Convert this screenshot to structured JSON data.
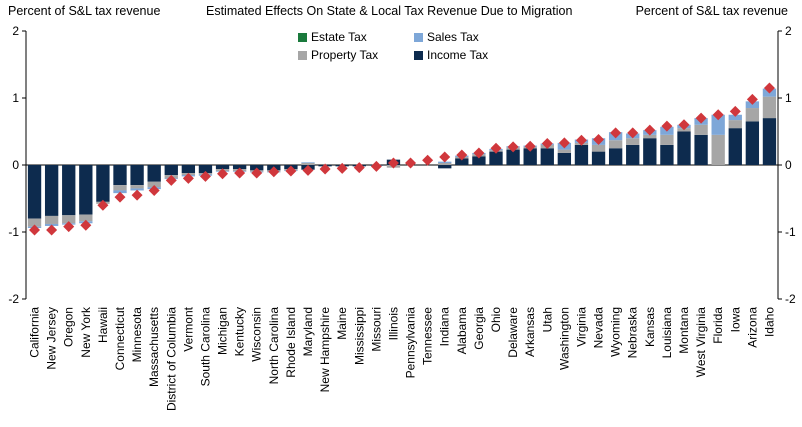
{
  "chart_data": {
    "type": "bar",
    "title": "Estimated Effects On State & Local Tax Revenue  Due to Migration",
    "ylabel_left": "Percent of S&L tax revenue",
    "ylabel_right": "Percent of S&L tax revenue",
    "ylim": [
      -2,
      2
    ],
    "yticks": [
      -2,
      -1,
      0,
      1,
      2
    ],
    "tick_labels": [
      "-2",
      "-1",
      "0",
      "1",
      "2"
    ],
    "stacked": true,
    "categories": [
      "California",
      "New Jersey",
      "Oregon",
      "New York",
      "Hawaii",
      "Connecticut",
      "Minnesota",
      "Massachusetts",
      "District of Columbia",
      "Vermont",
      "South Carolina",
      "Michigan",
      "Kentucky",
      "Wisconsin",
      "North Carolina",
      "Rhode Island",
      "Maryland",
      "New Hampshire",
      "Maine",
      "Mississippi",
      "Missouri",
      "Illinois",
      "Pennsylvania",
      "Tennessee",
      "Indiana",
      "Alabama",
      "Georgia",
      "Ohio",
      "Delaware",
      "Arkansas",
      "Utah",
      "Washington",
      "Virginia",
      "Nevada",
      "Wyoming",
      "Nebraska",
      "Kansas",
      "Louisiana",
      "Montana",
      "West Virginia",
      "Florida",
      "Iowa",
      "Arizona",
      "Idaho"
    ],
    "series": [
      {
        "name": "Income Tax",
        "color": "#0d2b4e",
        "values": [
          -0.8,
          -0.76,
          -0.75,
          -0.74,
          -0.55,
          -0.3,
          -0.3,
          -0.25,
          -0.15,
          -0.12,
          -0.12,
          -0.06,
          -0.06,
          -0.08,
          -0.08,
          -0.06,
          -0.07,
          -0.02,
          -0.02,
          -0.02,
          -0.01,
          0.08,
          0.0,
          0.0,
          -0.05,
          0.1,
          0.13,
          0.2,
          0.23,
          0.25,
          0.25,
          0.18,
          0.3,
          0.2,
          0.25,
          0.3,
          0.4,
          0.3,
          0.5,
          0.45,
          0.0,
          0.55,
          0.65,
          0.7
        ]
      },
      {
        "name": "Property Tax",
        "color": "#a6a6a6",
        "values": [
          -0.12,
          -0.12,
          -0.12,
          -0.1,
          -0.03,
          -0.08,
          -0.05,
          -0.08,
          -0.05,
          -0.03,
          -0.02,
          -0.03,
          -0.03,
          -0.02,
          -0.02,
          -0.02,
          0.03,
          0.0,
          0.0,
          0.0,
          0.0,
          -0.04,
          0.0,
          0.0,
          0.03,
          0.02,
          0.03,
          0.02,
          0.03,
          0.02,
          0.05,
          0.05,
          0.03,
          0.1,
          0.12,
          0.1,
          0.05,
          0.15,
          0.05,
          0.15,
          0.45,
          0.12,
          0.2,
          0.32
        ]
      },
      {
        "name": "Sales Tax",
        "color": "#7ea7d8",
        "values": [
          -0.02,
          -0.03,
          -0.02,
          -0.03,
          0.0,
          -0.04,
          -0.03,
          -0.03,
          -0.01,
          -0.02,
          -0.02,
          -0.01,
          -0.01,
          -0.01,
          -0.01,
          -0.01,
          0.01,
          0.0,
          0.0,
          0.0,
          0.0,
          0.0,
          0.0,
          0.0,
          0.02,
          0.02,
          0.02,
          0.02,
          0.02,
          0.02,
          0.02,
          0.1,
          0.05,
          0.1,
          0.12,
          0.07,
          0.07,
          0.12,
          0.05,
          0.1,
          0.3,
          0.08,
          0.1,
          0.12
        ]
      },
      {
        "name": "Estate Tax",
        "color": "#1a7a3c",
        "values": [
          0,
          0,
          0,
          0,
          0,
          0,
          0,
          0,
          0,
          0,
          0,
          0,
          0,
          0,
          0,
          0,
          0,
          0,
          0,
          0,
          0,
          0,
          0,
          0,
          0,
          0,
          0,
          0,
          0,
          0,
          0,
          0,
          0,
          0,
          0,
          0,
          0,
          0,
          0,
          0,
          0,
          0,
          0,
          0
        ]
      }
    ],
    "totals": [
      -0.97,
      -0.97,
      -0.92,
      -0.9,
      -0.6,
      -0.48,
      -0.45,
      -0.38,
      -0.23,
      -0.2,
      -0.17,
      -0.13,
      -0.12,
      -0.12,
      -0.1,
      -0.09,
      -0.08,
      -0.06,
      -0.05,
      -0.04,
      -0.02,
      0.03,
      0.03,
      0.07,
      0.12,
      0.15,
      0.18,
      0.25,
      0.27,
      0.28,
      0.32,
      0.33,
      0.37,
      0.38,
      0.48,
      0.48,
      0.52,
      0.58,
      0.6,
      0.7,
      0.75,
      0.8,
      0.98,
      1.15
    ],
    "totals_marker_color": "#d0373c",
    "legend": [
      {
        "name": "Estate Tax",
        "color": "#1a7a3c"
      },
      {
        "name": "Sales Tax",
        "color": "#7ea7d8"
      },
      {
        "name": "Property Tax",
        "color": "#a6a6a6"
      },
      {
        "name": "Income Tax",
        "color": "#0d2b4e"
      }
    ]
  }
}
